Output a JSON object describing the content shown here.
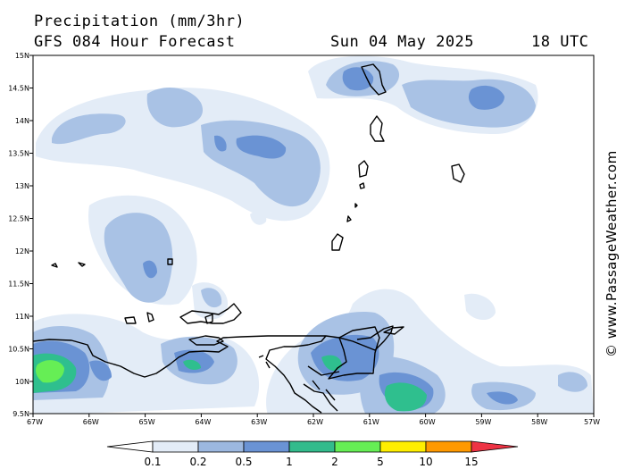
{
  "header": {
    "title": "Precipitation (mm/3hr)",
    "subtitle": "GFS 084 Hour Forecast",
    "date": "Sun 04 May 2025",
    "time": "18 UTC"
  },
  "credit": "© www.PassageWeather.com",
  "axes": {
    "lat_labels": [
      "15N",
      "14.5N",
      "14N",
      "13.5N",
      "13N",
      "12.5N",
      "12N",
      "11.5N",
      "11N",
      "10.5N",
      "10N",
      "9.5N"
    ],
    "lon_labels": [
      "67W",
      "66W",
      "65W",
      "64W",
      "63W",
      "62W",
      "61W",
      "60W",
      "59W",
      "58W",
      "57W"
    ]
  },
  "legend": {
    "labels": [
      "0.1",
      "0.2",
      "0.5",
      "1",
      "2",
      "5",
      "10",
      "15"
    ],
    "colors": [
      "#e3ecf7",
      "#c5d6ec",
      "#9cb8e0",
      "#6a93d4",
      "#33bb8c",
      "#66ee55",
      "#ffee00",
      "#ff9900",
      "#ee3344"
    ]
  },
  "colors": {
    "level_1": "#e3ecf7",
    "level_2": "#a9c2e5",
    "level_3": "#6a93d4",
    "level_4": "#2fbf8e",
    "level_5": "#66ee55",
    "coast": "#000000"
  }
}
